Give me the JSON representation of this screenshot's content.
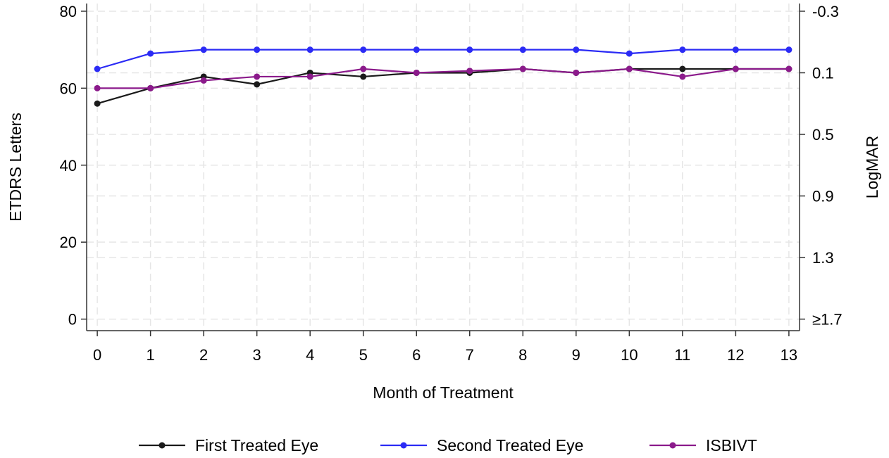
{
  "chart_data": {
    "type": "line",
    "xlabel": "Month of Treatment",
    "ylabel": "ETDRS Letters",
    "y2label": "LogMAR",
    "x": [
      0,
      1,
      2,
      3,
      4,
      5,
      6,
      7,
      8,
      9,
      10,
      11,
      12,
      13
    ],
    "xlim": [
      -0.2,
      13.2
    ],
    "ylim": [
      -3,
      82
    ],
    "yticks": [
      0,
      20,
      40,
      60,
      80
    ],
    "y2ticks": [
      {
        "etdrs": 80,
        "label": "-0.3"
      },
      {
        "etdrs": 64,
        "label": "0.1"
      },
      {
        "etdrs": 48,
        "label": "0.5"
      },
      {
        "etdrs": 32,
        "label": "0.9"
      },
      {
        "etdrs": 16,
        "label": "1.3"
      },
      {
        "etdrs": 0,
        "label": "≥1.7"
      }
    ],
    "grid": true,
    "legend_position": "bottom",
    "series": [
      {
        "name": "First Treated Eye",
        "color": "#1a1a1a",
        "values": [
          56,
          60,
          63,
          61,
          64,
          63,
          64,
          64,
          65,
          64,
          65,
          65,
          65,
          65
        ]
      },
      {
        "name": "Second Treated Eye",
        "color": "#2b2bf5",
        "values": [
          65,
          69,
          70,
          70,
          70,
          70,
          70,
          70,
          70,
          70,
          69,
          70,
          70,
          70
        ]
      },
      {
        "name": "ISBIVT",
        "color": "#8b1a8b",
        "values": [
          60,
          60,
          62,
          63,
          63,
          65,
          64,
          64.5,
          65,
          64,
          65,
          63,
          65,
          65
        ]
      }
    ]
  }
}
